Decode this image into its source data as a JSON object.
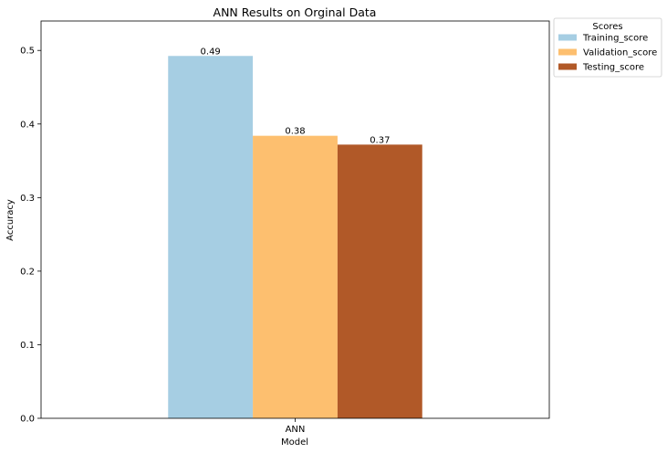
{
  "chart_data": {
    "type": "bar",
    "title": "ANN Results on Orginal Data",
    "xlabel": "Model",
    "ylabel": "Accuracy",
    "categories": [
      "ANN"
    ],
    "ylim": [
      0,
      0.54
    ],
    "yticks": [
      "0.0",
      "0.1",
      "0.2",
      "0.3",
      "0.4",
      "0.5"
    ],
    "grid": false,
    "legend": {
      "title": "Scores",
      "placement": "outside-top-right"
    },
    "series": [
      {
        "name": "Training_score",
        "values": [
          0.4925
        ],
        "label": "0.49",
        "color": "#a6cee3"
      },
      {
        "name": "Validation_score",
        "values": [
          0.384
        ],
        "label": "0.38",
        "color": "#fdbf6f"
      },
      {
        "name": "Testing_score",
        "values": [
          0.372
        ],
        "label": "0.37",
        "color": "#b15928"
      }
    ]
  }
}
